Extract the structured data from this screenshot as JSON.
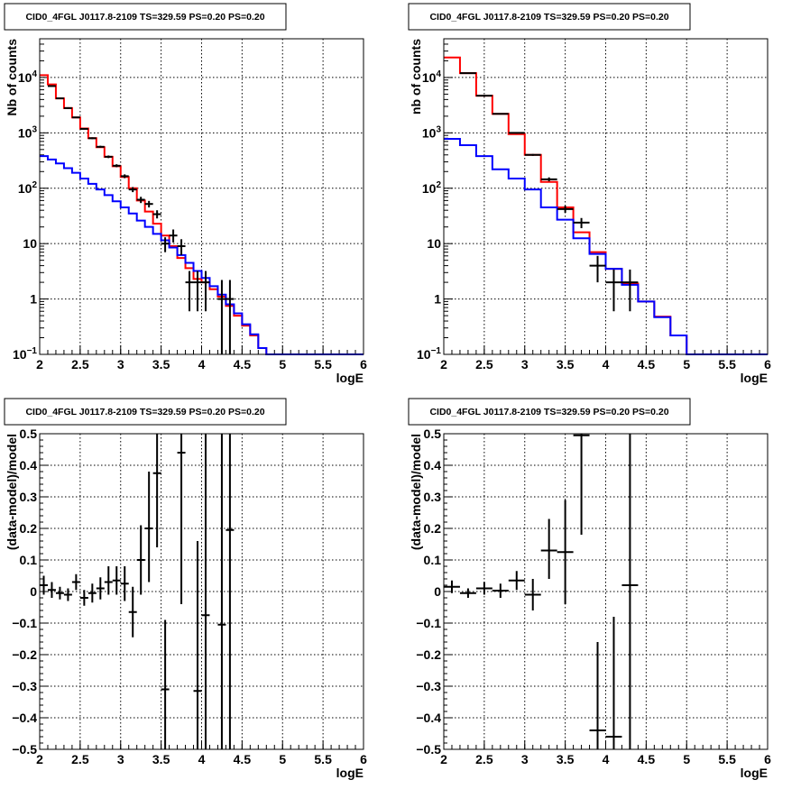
{
  "chart_data": [
    {
      "type": "step",
      "title": "CID0_4FGL J0117.8-2109 TS=329.59 PS=0.20 PS=0.20",
      "xlabel": "logE",
      "ylabel": "Nb of counts",
      "xlim": [
        2,
        6
      ],
      "ylim": [
        0.1,
        50000
      ],
      "yscale": "log",
      "grid": true,
      "xticks": [
        "2",
        "2.5",
        "3",
        "3.5",
        "4",
        "4.5",
        "5",
        "5.5",
        "6"
      ],
      "yticks": [
        {
          "v": 0.1,
          "base": "10",
          "exp": "−1"
        },
        {
          "v": 1,
          "label": "1"
        },
        {
          "v": 10,
          "label": "10"
        },
        {
          "v": 100,
          "base": "10",
          "exp": "2"
        },
        {
          "v": 1000,
          "base": "10",
          "exp": "3"
        },
        {
          "v": 10000,
          "base": "10",
          "exp": "4"
        }
      ],
      "bin_width": 0.1,
      "series": [
        {
          "color": "#ff0000",
          "x_low": 2.0,
          "values": [
            11000,
            7500,
            4200,
            2800,
            1900,
            1200,
            800,
            550,
            370,
            250,
            160,
            100,
            60,
            38,
            23,
            14,
            9.0,
            5.5,
            3.6,
            2.3,
            2.0,
            1.5,
            1.1,
            0.75,
            0.5,
            0.33,
            0.22,
            0.13,
            0.1,
            0.1,
            0.1,
            0.1,
            0.1,
            0.1,
            0.1,
            0.1,
            0.1,
            0.1,
            0.1,
            0.1
          ]
        },
        {
          "color": "#0000ff",
          "x_low": 2.0,
          "values": [
            380,
            330,
            280,
            230,
            190,
            150,
            120,
            95,
            75,
            58,
            45,
            35,
            26,
            20,
            15,
            11.5,
            8.5,
            6.2,
            4.5,
            3.2,
            2.4,
            1.7,
            1.2,
            0.8,
            0.55,
            0.35,
            0.23,
            0.13,
            0.1,
            0.1,
            0.1,
            0.1,
            0.1,
            0.1,
            0.1,
            0.1,
            0.1,
            0.1,
            0.1,
            0.1
          ]
        }
      ],
      "points": [
        {
          "x": 2.15,
          "y": 7000,
          "lo": 6850,
          "hi": 7150
        },
        {
          "x": 2.25,
          "y": 4200,
          "lo": 4100,
          "hi": 4300
        },
        {
          "x": 2.35,
          "y": 2800,
          "lo": 2700,
          "hi": 2900
        },
        {
          "x": 2.45,
          "y": 1900,
          "lo": 1850,
          "hi": 1950
        },
        {
          "x": 2.55,
          "y": 1180,
          "lo": 1150,
          "hi": 1220
        },
        {
          "x": 2.65,
          "y": 800,
          "lo": 770,
          "hi": 830
        },
        {
          "x": 2.75,
          "y": 560,
          "lo": 540,
          "hi": 585
        },
        {
          "x": 2.85,
          "y": 370,
          "lo": 350,
          "hi": 390
        },
        {
          "x": 2.95,
          "y": 255,
          "lo": 240,
          "hi": 271
        },
        {
          "x": 3.05,
          "y": 165,
          "lo": 152,
          "hi": 178
        },
        {
          "x": 3.15,
          "y": 95,
          "lo": 85,
          "hi": 105
        },
        {
          "x": 3.25,
          "y": 62,
          "lo": 54,
          "hi": 70
        },
        {
          "x": 3.35,
          "y": 52,
          "lo": 45,
          "hi": 59
        },
        {
          "x": 3.45,
          "y": 34,
          "lo": 28.5,
          "hi": 40
        },
        {
          "x": 3.55,
          "y": 10,
          "lo": 7,
          "hi": 13
        },
        {
          "x": 3.65,
          "y": 14,
          "lo": 10.5,
          "hi": 18
        },
        {
          "x": 3.75,
          "y": 9,
          "lo": 6.2,
          "hi": 12
        },
        {
          "x": 3.85,
          "y": 2,
          "lo": 0.6,
          "hi": 3.2
        },
        {
          "x": 3.95,
          "y": 2,
          "lo": 0.6,
          "hi": 3.2
        },
        {
          "x": 4.05,
          "y": 2,
          "lo": 0.6,
          "hi": 3.2
        },
        {
          "x": 4.25,
          "y": 1,
          "lo": 0.1,
          "hi": 2.2
        },
        {
          "x": 4.35,
          "y": 1,
          "lo": 0.1,
          "hi": 2.2
        }
      ]
    },
    {
      "type": "step",
      "title": "CID0_4FGL J0117.8-2109 TS=329.59 PS=0.20 PS=0.20",
      "xlabel": "logE",
      "ylabel": "nb of counts",
      "xlim": [
        2,
        6
      ],
      "ylim": [
        0.1,
        50000
      ],
      "yscale": "log",
      "grid": true,
      "xticks": [
        "2",
        "2.5",
        "3",
        "3.5",
        "4",
        "4.5",
        "5",
        "5.5",
        "6"
      ],
      "yticks": [
        {
          "v": 0.1,
          "base": "10",
          "exp": "−1"
        },
        {
          "v": 1,
          "label": "1"
        },
        {
          "v": 10,
          "label": "10"
        },
        {
          "v": 100,
          "base": "10",
          "exp": "2"
        },
        {
          "v": 1000,
          "base": "10",
          "exp": "3"
        },
        {
          "v": 10000,
          "base": "10",
          "exp": "4"
        }
      ],
      "bin_width": 0.2,
      "series": [
        {
          "color": "#ff0000",
          "x_low": 2.0,
          "values": [
            23000,
            12000,
            4700,
            2200,
            950,
            400,
            130,
            45,
            16,
            7,
            3.5,
            1.9,
            0.9,
            0.48,
            0.22,
            0.1,
            0.1,
            0.1,
            0.1,
            0.1
          ]
        },
        {
          "color": "#0000ff",
          "x_low": 2.0,
          "values": [
            780,
            600,
            380,
            220,
            150,
            95,
            45,
            27,
            12.5,
            6.5,
            3.5,
            1.8,
            0.9,
            0.47,
            0.22,
            0.1,
            0.1,
            0.1,
            0.1,
            0.1
          ]
        }
      ],
      "points": [
        {
          "x": 2.3,
          "y": 12000,
          "lo": 11800,
          "hi": 12200
        },
        {
          "x": 2.5,
          "y": 4700,
          "lo": 4600,
          "hi": 4800
        },
        {
          "x": 2.7,
          "y": 2200,
          "lo": 2150,
          "hi": 2250
        },
        {
          "x": 2.9,
          "y": 1000,
          "lo": 970,
          "hi": 1030
        },
        {
          "x": 3.1,
          "y": 400,
          "lo": 385,
          "hi": 415
        },
        {
          "x": 3.3,
          "y": 145,
          "lo": 133,
          "hi": 157
        },
        {
          "x": 3.5,
          "y": 42,
          "lo": 36,
          "hi": 48
        },
        {
          "x": 3.7,
          "y": 24,
          "lo": 19,
          "hi": 29
        },
        {
          "x": 3.9,
          "y": 4,
          "lo": 2,
          "hi": 6
        },
        {
          "x": 4.1,
          "y": 2,
          "lo": 0.6,
          "hi": 3.4
        },
        {
          "x": 4.3,
          "y": 2,
          "lo": 0.6,
          "hi": 3.4
        }
      ]
    },
    {
      "type": "scatter",
      "title": "CID0_4FGL J0117.8-2109 TS=329.59 PS=0.20 PS=0.20",
      "xlabel": "logE",
      "ylabel": "(data-model)/model",
      "xlim": [
        2,
        6
      ],
      "ylim": [
        -0.5,
        0.5
      ],
      "yscale": "linear",
      "grid": true,
      "xticks": [
        "2",
        "2.5",
        "3",
        "3.5",
        "4",
        "4.5",
        "5",
        "5.5",
        "6"
      ],
      "yticks": [
        {
          "v": -0.5,
          "label": "−0.5"
        },
        {
          "v": -0.4,
          "label": "−0.4"
        },
        {
          "v": -0.3,
          "label": "−0.3"
        },
        {
          "v": -0.2,
          "label": "−0.2"
        },
        {
          "v": -0.1,
          "label": "−0.1"
        },
        {
          "v": 0,
          "label": "0"
        },
        {
          "v": 0.1,
          "label": "0.1"
        },
        {
          "v": 0.2,
          "label": "0.2"
        },
        {
          "v": 0.3,
          "label": "0.3"
        },
        {
          "v": 0.4,
          "label": "0.4"
        },
        {
          "v": 0.5,
          "label": "0.5"
        }
      ],
      "bin_width": 0.1,
      "points": [
        {
          "x": 2.05,
          "y": 0.02,
          "lo": -0.01,
          "hi": 0.05
        },
        {
          "x": 2.15,
          "y": 0.005,
          "lo": -0.02,
          "hi": 0.03
        },
        {
          "x": 2.25,
          "y": -0.005,
          "lo": -0.025,
          "hi": 0.015
        },
        {
          "x": 2.35,
          "y": -0.01,
          "lo": -0.03,
          "hi": 0.01
        },
        {
          "x": 2.45,
          "y": 0.03,
          "lo": 0.005,
          "hi": 0.055
        },
        {
          "x": 2.55,
          "y": -0.02,
          "lo": -0.045,
          "hi": 0.005
        },
        {
          "x": 2.65,
          "y": -0.005,
          "lo": -0.035,
          "hi": 0.025
        },
        {
          "x": 2.75,
          "y": 0.01,
          "lo": -0.025,
          "hi": 0.045
        },
        {
          "x": 2.85,
          "y": 0.03,
          "lo": -0.01,
          "hi": 0.08
        },
        {
          "x": 2.95,
          "y": 0.035,
          "lo": -0.01,
          "hi": 0.08
        },
        {
          "x": 3.05,
          "y": 0.025,
          "lo": -0.03,
          "hi": 0.08
        },
        {
          "x": 3.15,
          "y": -0.065,
          "lo": -0.145,
          "hi": 0.015
        },
        {
          "x": 3.25,
          "y": 0.1,
          "lo": -0.01,
          "hi": 0.21
        },
        {
          "x": 3.35,
          "y": 0.2,
          "lo": 0.03,
          "hi": 0.38
        },
        {
          "x": 3.45,
          "y": 0.375,
          "lo": 0.14,
          "hi": 0.5
        },
        {
          "x": 3.55,
          "y": -0.31,
          "lo": -0.5,
          "hi": -0.09
        },
        {
          "x": 3.75,
          "y": 0.44,
          "lo": -0.04,
          "hi": 0.5
        },
        {
          "x": 3.95,
          "y": -0.315,
          "lo": -0.5,
          "hi": 0.16
        },
        {
          "x": 4.05,
          "y": -0.075,
          "lo": -0.5,
          "hi": 0.5
        },
        {
          "x": 4.25,
          "y": -0.105,
          "lo": -0.5,
          "hi": 0.5
        },
        {
          "x": 4.35,
          "y": 0.195,
          "lo": -0.5,
          "hi": 0.5
        }
      ]
    },
    {
      "type": "scatter",
      "title": "CID0_4FGL J0117.8-2109 TS=329.59 PS=0.20 PS=0.20",
      "xlabel": "logE",
      "ylabel": "(data-model)/model",
      "xlim": [
        2,
        6
      ],
      "ylim": [
        -0.5,
        0.5
      ],
      "yscale": "linear",
      "grid": true,
      "xticks": [
        "2",
        "2.5",
        "3",
        "3.5",
        "4",
        "4.5",
        "5",
        "5.5",
        "6"
      ],
      "yticks": [
        {
          "v": -0.5,
          "label": "−0.5"
        },
        {
          "v": -0.4,
          "label": "−0.4"
        },
        {
          "v": -0.3,
          "label": "−0.3"
        },
        {
          "v": -0.2,
          "label": "−0.2"
        },
        {
          "v": -0.1,
          "label": "−0.1"
        },
        {
          "v": 0,
          "label": "0"
        },
        {
          "v": 0.1,
          "label": "0.1"
        },
        {
          "v": 0.2,
          "label": "0.2"
        },
        {
          "v": 0.3,
          "label": "0.3"
        },
        {
          "v": 0.4,
          "label": "0.4"
        },
        {
          "v": 0.5,
          "label": "0.5"
        }
      ],
      "bin_width": 0.2,
      "points": [
        {
          "x": 2.1,
          "y": 0.015,
          "lo": -0.005,
          "hi": 0.035
        },
        {
          "x": 2.3,
          "y": -0.005,
          "lo": -0.02,
          "hi": 0.01
        },
        {
          "x": 2.5,
          "y": 0.01,
          "lo": -0.01,
          "hi": 0.03
        },
        {
          "x": 2.7,
          "y": 0.003,
          "lo": -0.02,
          "hi": 0.025
        },
        {
          "x": 2.9,
          "y": 0.035,
          "lo": 0.005,
          "hi": 0.065
        },
        {
          "x": 3.1,
          "y": -0.01,
          "lo": -0.06,
          "hi": 0.04
        },
        {
          "x": 3.3,
          "y": 0.13,
          "lo": 0.04,
          "hi": 0.23
        },
        {
          "x": 3.5,
          "y": 0.125,
          "lo": -0.04,
          "hi": 0.29
        },
        {
          "x": 3.7,
          "y": 0.495,
          "lo": 0.18,
          "hi": 0.5
        },
        {
          "x": 3.9,
          "y": -0.44,
          "lo": -0.5,
          "hi": -0.16
        },
        {
          "x": 4.1,
          "y": -0.46,
          "lo": -0.5,
          "hi": -0.08
        },
        {
          "x": 4.3,
          "y": 0.02,
          "lo": -0.5,
          "hi": 0.5
        }
      ]
    }
  ]
}
